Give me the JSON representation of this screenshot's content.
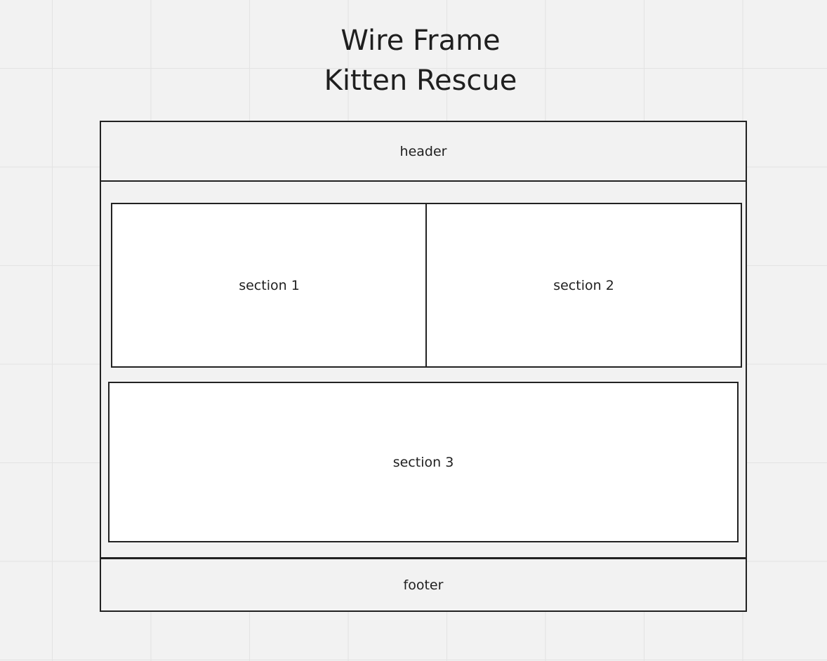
{
  "title": {
    "line1": "Wire Frame",
    "line2": "Kitten Rescue"
  },
  "wireframe": {
    "header_label": "header",
    "section1_label": "section 1",
    "section2_label": "section 2",
    "section3_label": "section 3",
    "footer_label": "footer"
  },
  "colors": {
    "canvas_background": "#f2f2f2",
    "grid_lines": "#e3e3e3",
    "box_stroke": "#222222",
    "section_fill": "#ffffff"
  }
}
